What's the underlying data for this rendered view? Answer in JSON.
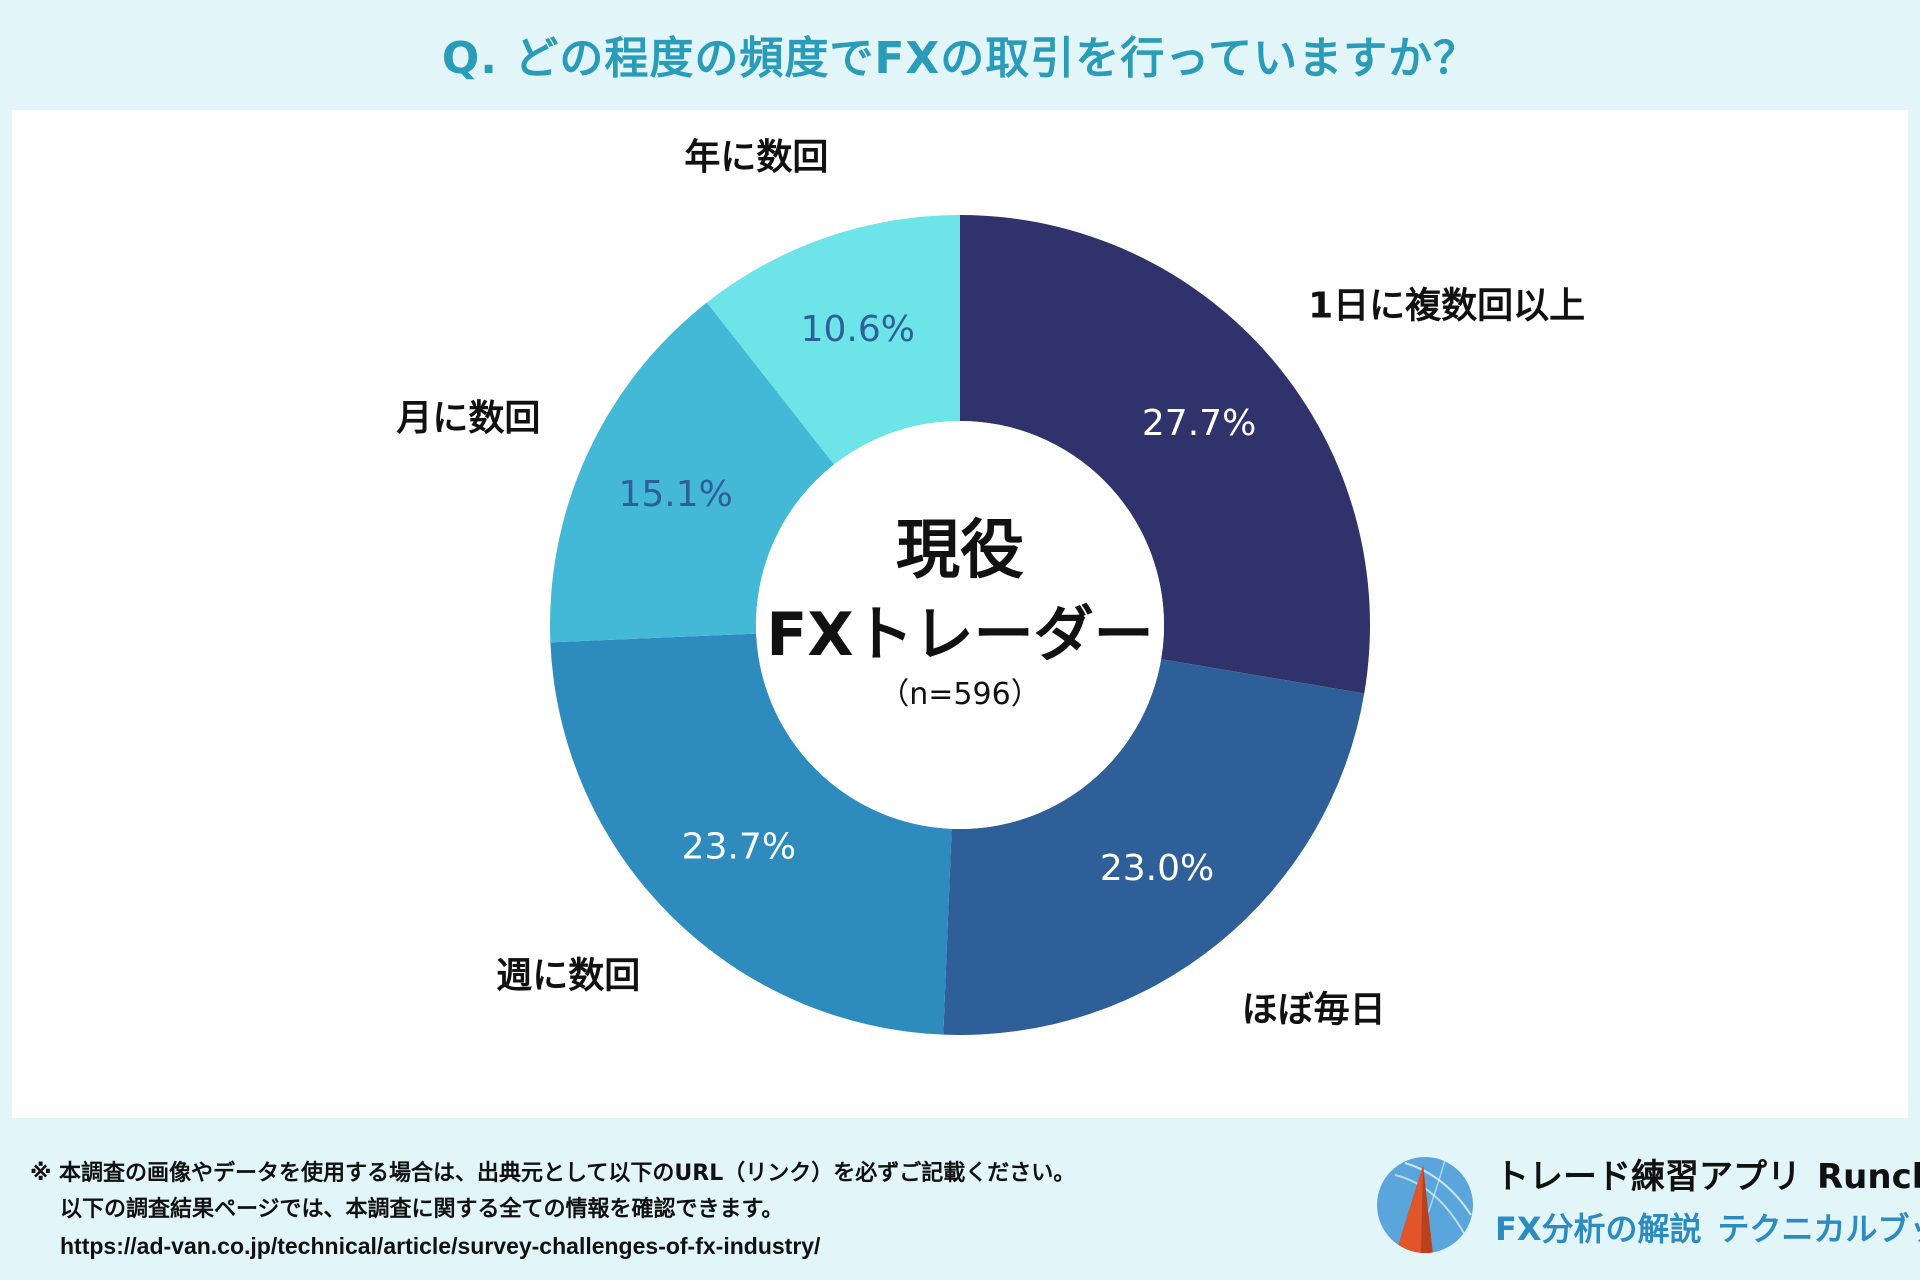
{
  "header": {
    "question": "Q. どの程度の頻度でFXの取引を行っていますか？"
  },
  "center_label": {
    "line1": "現役",
    "line2": "FXトレーダー",
    "sample": "（n=596）"
  },
  "chart_data": {
    "type": "pie",
    "variant": "donut",
    "title": "Q. どの程度の頻度でFXの取引を行っていますか？",
    "n": 596,
    "categories": [
      "1日に複数回以上",
      "ほぼ毎日",
      "週に数回",
      "月に数回",
      "年に数回"
    ],
    "values": [
      27.7,
      23.0,
      23.7,
      15.1,
      10.6
    ],
    "value_labels": [
      "27.7%",
      "23.0%",
      "23.7%",
      "15.1%",
      "10.6%"
    ],
    "colors": [
      "#30336b",
      "#2e5f98",
      "#2e8bbd",
      "#43b8d7",
      "#6ce4e8"
    ],
    "value_label_colors": [
      "#ffffff",
      "#ffffff",
      "#ffffff",
      "#2e5f98",
      "#2e5f98"
    ],
    "start": "12 o'clock",
    "direction": "clockwise"
  },
  "footer": {
    "note_line1": "※ 本調査の画像やデータを使用する場合は、出典元として以下のURL（リンク）を必ずご記載ください。",
    "note_line2": "以下の調査結果ページでは、本調査に関する全ての情報を確認できます。",
    "url": "https://ad-van.co.jp/technical/article/survey-challenges-of-fx-industry/"
  },
  "brand": {
    "app_name": "トレード練習アプリ",
    "app_name_en": "Runcha",
    "sub_title": "FX分析の解説",
    "sub_title2": "テクニカルブック",
    "logo_icon": "runcha-logo-icon",
    "logo_colors": [
      "#5aa6dc",
      "#e0552a"
    ]
  }
}
